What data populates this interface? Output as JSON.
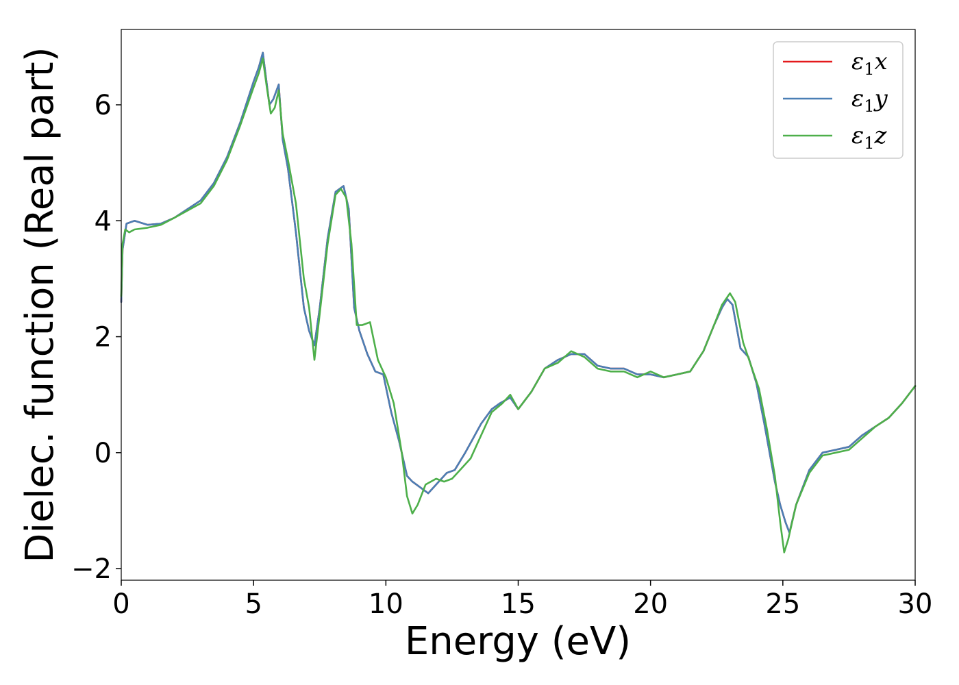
{
  "chart_data": {
    "type": "line",
    "xlabel": "Energy (eV)",
    "ylabel": "Dielec. function (Real part)",
    "xlim": [
      0,
      30
    ],
    "ylim": [
      -2.2,
      7.3
    ],
    "xticks": [
      0,
      5,
      10,
      15,
      20,
      25,
      30
    ],
    "xtick_labels": [
      "0",
      "5",
      "10",
      "15",
      "20",
      "25",
      "30"
    ],
    "yticks": [
      -2,
      0,
      2,
      4,
      6
    ],
    "ytick_labels": [
      "−2",
      "0",
      "2",
      "4",
      "6"
    ],
    "grid": false,
    "legend_position": "top-right",
    "series": [
      {
        "name": "ε1x",
        "symbol": "ε",
        "subscript": "1",
        "component": "x",
        "color": "#e41a1c",
        "x": [
          0,
          0.05,
          0.2,
          0.5,
          1,
          1.5,
          2,
          3,
          3.5,
          4,
          4.5,
          5,
          5.2,
          5.35,
          5.6,
          5.75,
          5.95,
          6.1,
          6.3,
          6.6,
          6.9,
          7.1,
          7.3,
          7.5,
          7.8,
          8.1,
          8.4,
          8.6,
          8.8,
          9.0,
          9.3,
          9.6,
          9.9,
          10.2,
          10.5,
          10.8,
          11.0,
          11.3,
          11.6,
          11.9,
          12.3,
          12.6,
          13.0,
          13.3,
          13.6,
          14.0,
          14.3,
          14.7,
          15.0,
          15.5,
          16.0,
          16.5,
          17.0,
          17.5,
          18.0,
          18.5,
          19.0,
          19.5,
          20.0,
          20.5,
          21.0,
          21.5,
          22.0,
          22.4,
          22.7,
          22.9,
          23.1,
          23.4,
          23.7,
          24.0,
          24.3,
          24.7,
          24.9,
          25.1,
          25.25,
          25.5,
          26.0,
          26.5,
          27.0,
          27.5,
          28.0,
          28.5,
          29.0,
          29.5,
          30.0
        ],
        "y": [
          2.6,
          3.5,
          3.95,
          4.0,
          3.93,
          3.95,
          4.05,
          4.35,
          4.65,
          5.1,
          5.7,
          6.4,
          6.65,
          6.9,
          6.0,
          6.1,
          6.35,
          5.4,
          4.9,
          3.8,
          2.5,
          2.1,
          1.85,
          2.5,
          3.7,
          4.5,
          4.6,
          4.2,
          2.5,
          2.1,
          1.7,
          1.4,
          1.35,
          0.7,
          0.2,
          -0.4,
          -0.5,
          -0.6,
          -0.7,
          -0.55,
          -0.35,
          -0.3,
          0.0,
          0.25,
          0.5,
          0.75,
          0.85,
          0.95,
          0.75,
          1.05,
          1.45,
          1.6,
          1.7,
          1.7,
          1.5,
          1.45,
          1.45,
          1.35,
          1.35,
          1.3,
          1.35,
          1.4,
          1.75,
          2.2,
          2.5,
          2.65,
          2.55,
          1.8,
          1.65,
          1.2,
          0.5,
          -0.5,
          -0.9,
          -1.2,
          -1.38,
          -0.9,
          -0.3,
          0.0,
          0.05,
          0.1,
          0.3,
          0.45,
          0.6,
          0.85,
          1.15
        ]
      },
      {
        "name": "ε1y",
        "symbol": "ε",
        "subscript": "1",
        "component": "y",
        "color": "#4a7fb5",
        "x": [
          0,
          0.05,
          0.2,
          0.5,
          1,
          1.5,
          2,
          3,
          3.5,
          4,
          4.5,
          5,
          5.2,
          5.35,
          5.6,
          5.75,
          5.95,
          6.1,
          6.3,
          6.6,
          6.9,
          7.1,
          7.3,
          7.5,
          7.8,
          8.1,
          8.4,
          8.6,
          8.8,
          9.0,
          9.3,
          9.6,
          9.9,
          10.2,
          10.5,
          10.8,
          11.0,
          11.3,
          11.6,
          11.9,
          12.3,
          12.6,
          13.0,
          13.3,
          13.6,
          14.0,
          14.3,
          14.7,
          15.0,
          15.5,
          16.0,
          16.5,
          17.0,
          17.5,
          18.0,
          18.5,
          19.0,
          19.5,
          20.0,
          20.5,
          21.0,
          21.5,
          22.0,
          22.4,
          22.7,
          22.9,
          23.1,
          23.4,
          23.7,
          24.0,
          24.3,
          24.7,
          24.9,
          25.1,
          25.25,
          25.5,
          26.0,
          26.5,
          27.0,
          27.5,
          28.0,
          28.5,
          29.0,
          29.5,
          30.0
        ],
        "y": [
          2.6,
          3.5,
          3.95,
          4.0,
          3.93,
          3.95,
          4.05,
          4.35,
          4.65,
          5.1,
          5.7,
          6.4,
          6.65,
          6.9,
          6.0,
          6.1,
          6.35,
          5.4,
          4.9,
          3.8,
          2.5,
          2.1,
          1.85,
          2.5,
          3.7,
          4.5,
          4.6,
          4.2,
          2.5,
          2.1,
          1.7,
          1.4,
          1.35,
          0.7,
          0.2,
          -0.4,
          -0.5,
          -0.6,
          -0.7,
          -0.55,
          -0.35,
          -0.3,
          0.0,
          0.25,
          0.5,
          0.75,
          0.85,
          0.95,
          0.75,
          1.05,
          1.45,
          1.6,
          1.7,
          1.7,
          1.5,
          1.45,
          1.45,
          1.35,
          1.35,
          1.3,
          1.35,
          1.4,
          1.75,
          2.2,
          2.5,
          2.65,
          2.55,
          1.8,
          1.65,
          1.2,
          0.5,
          -0.5,
          -0.9,
          -1.2,
          -1.38,
          -0.9,
          -0.3,
          0.0,
          0.05,
          0.1,
          0.3,
          0.45,
          0.6,
          0.85,
          1.15
        ]
      },
      {
        "name": "ε1z",
        "symbol": "ε",
        "subscript": "1",
        "component": "z",
        "color": "#4daf4a",
        "x": [
          0,
          0.05,
          0.15,
          0.3,
          0.5,
          1,
          1.5,
          2,
          3,
          3.5,
          4,
          4.5,
          5,
          5.2,
          5.35,
          5.5,
          5.65,
          5.8,
          5.95,
          6.1,
          6.3,
          6.6,
          6.9,
          7.1,
          7.3,
          7.5,
          7.8,
          8.1,
          8.3,
          8.5,
          8.7,
          8.9,
          9.1,
          9.4,
          9.7,
          10.0,
          10.3,
          10.6,
          10.8,
          11.0,
          11.2,
          11.5,
          11.9,
          12.2,
          12.5,
          12.8,
          13.2,
          13.6,
          14.0,
          14.4,
          14.7,
          15.0,
          15.5,
          16.0,
          16.5,
          17.0,
          17.5,
          18.0,
          18.5,
          19.0,
          19.5,
          20.0,
          20.5,
          21.0,
          21.5,
          22.0,
          22.4,
          22.7,
          23.0,
          23.2,
          23.5,
          23.8,
          24.1,
          24.4,
          24.7,
          24.9,
          25.05,
          25.2,
          25.5,
          26.0,
          26.5,
          27.0,
          27.5,
          28.0,
          28.5,
          29.0,
          29.5,
          30.0
        ],
        "y": [
          2.7,
          3.6,
          3.85,
          3.8,
          3.85,
          3.88,
          3.93,
          4.05,
          4.3,
          4.6,
          5.05,
          5.65,
          6.3,
          6.55,
          6.8,
          6.3,
          5.85,
          5.95,
          6.25,
          5.5,
          5.05,
          4.3,
          3.0,
          2.5,
          1.6,
          2.4,
          3.6,
          4.45,
          4.55,
          4.4,
          3.6,
          2.2,
          2.2,
          2.25,
          1.6,
          1.3,
          0.85,
          0.0,
          -0.75,
          -1.05,
          -0.9,
          -0.55,
          -0.45,
          -0.5,
          -0.45,
          -0.3,
          -0.1,
          0.3,
          0.7,
          0.85,
          1.0,
          0.75,
          1.05,
          1.45,
          1.55,
          1.75,
          1.65,
          1.45,
          1.4,
          1.4,
          1.3,
          1.4,
          1.3,
          1.35,
          1.4,
          1.75,
          2.2,
          2.55,
          2.75,
          2.6,
          1.9,
          1.5,
          1.1,
          0.4,
          -0.4,
          -1.2,
          -1.72,
          -1.5,
          -0.9,
          -0.35,
          -0.05,
          0.0,
          0.05,
          0.25,
          0.45,
          0.6,
          0.85,
          1.15
        ]
      }
    ]
  }
}
